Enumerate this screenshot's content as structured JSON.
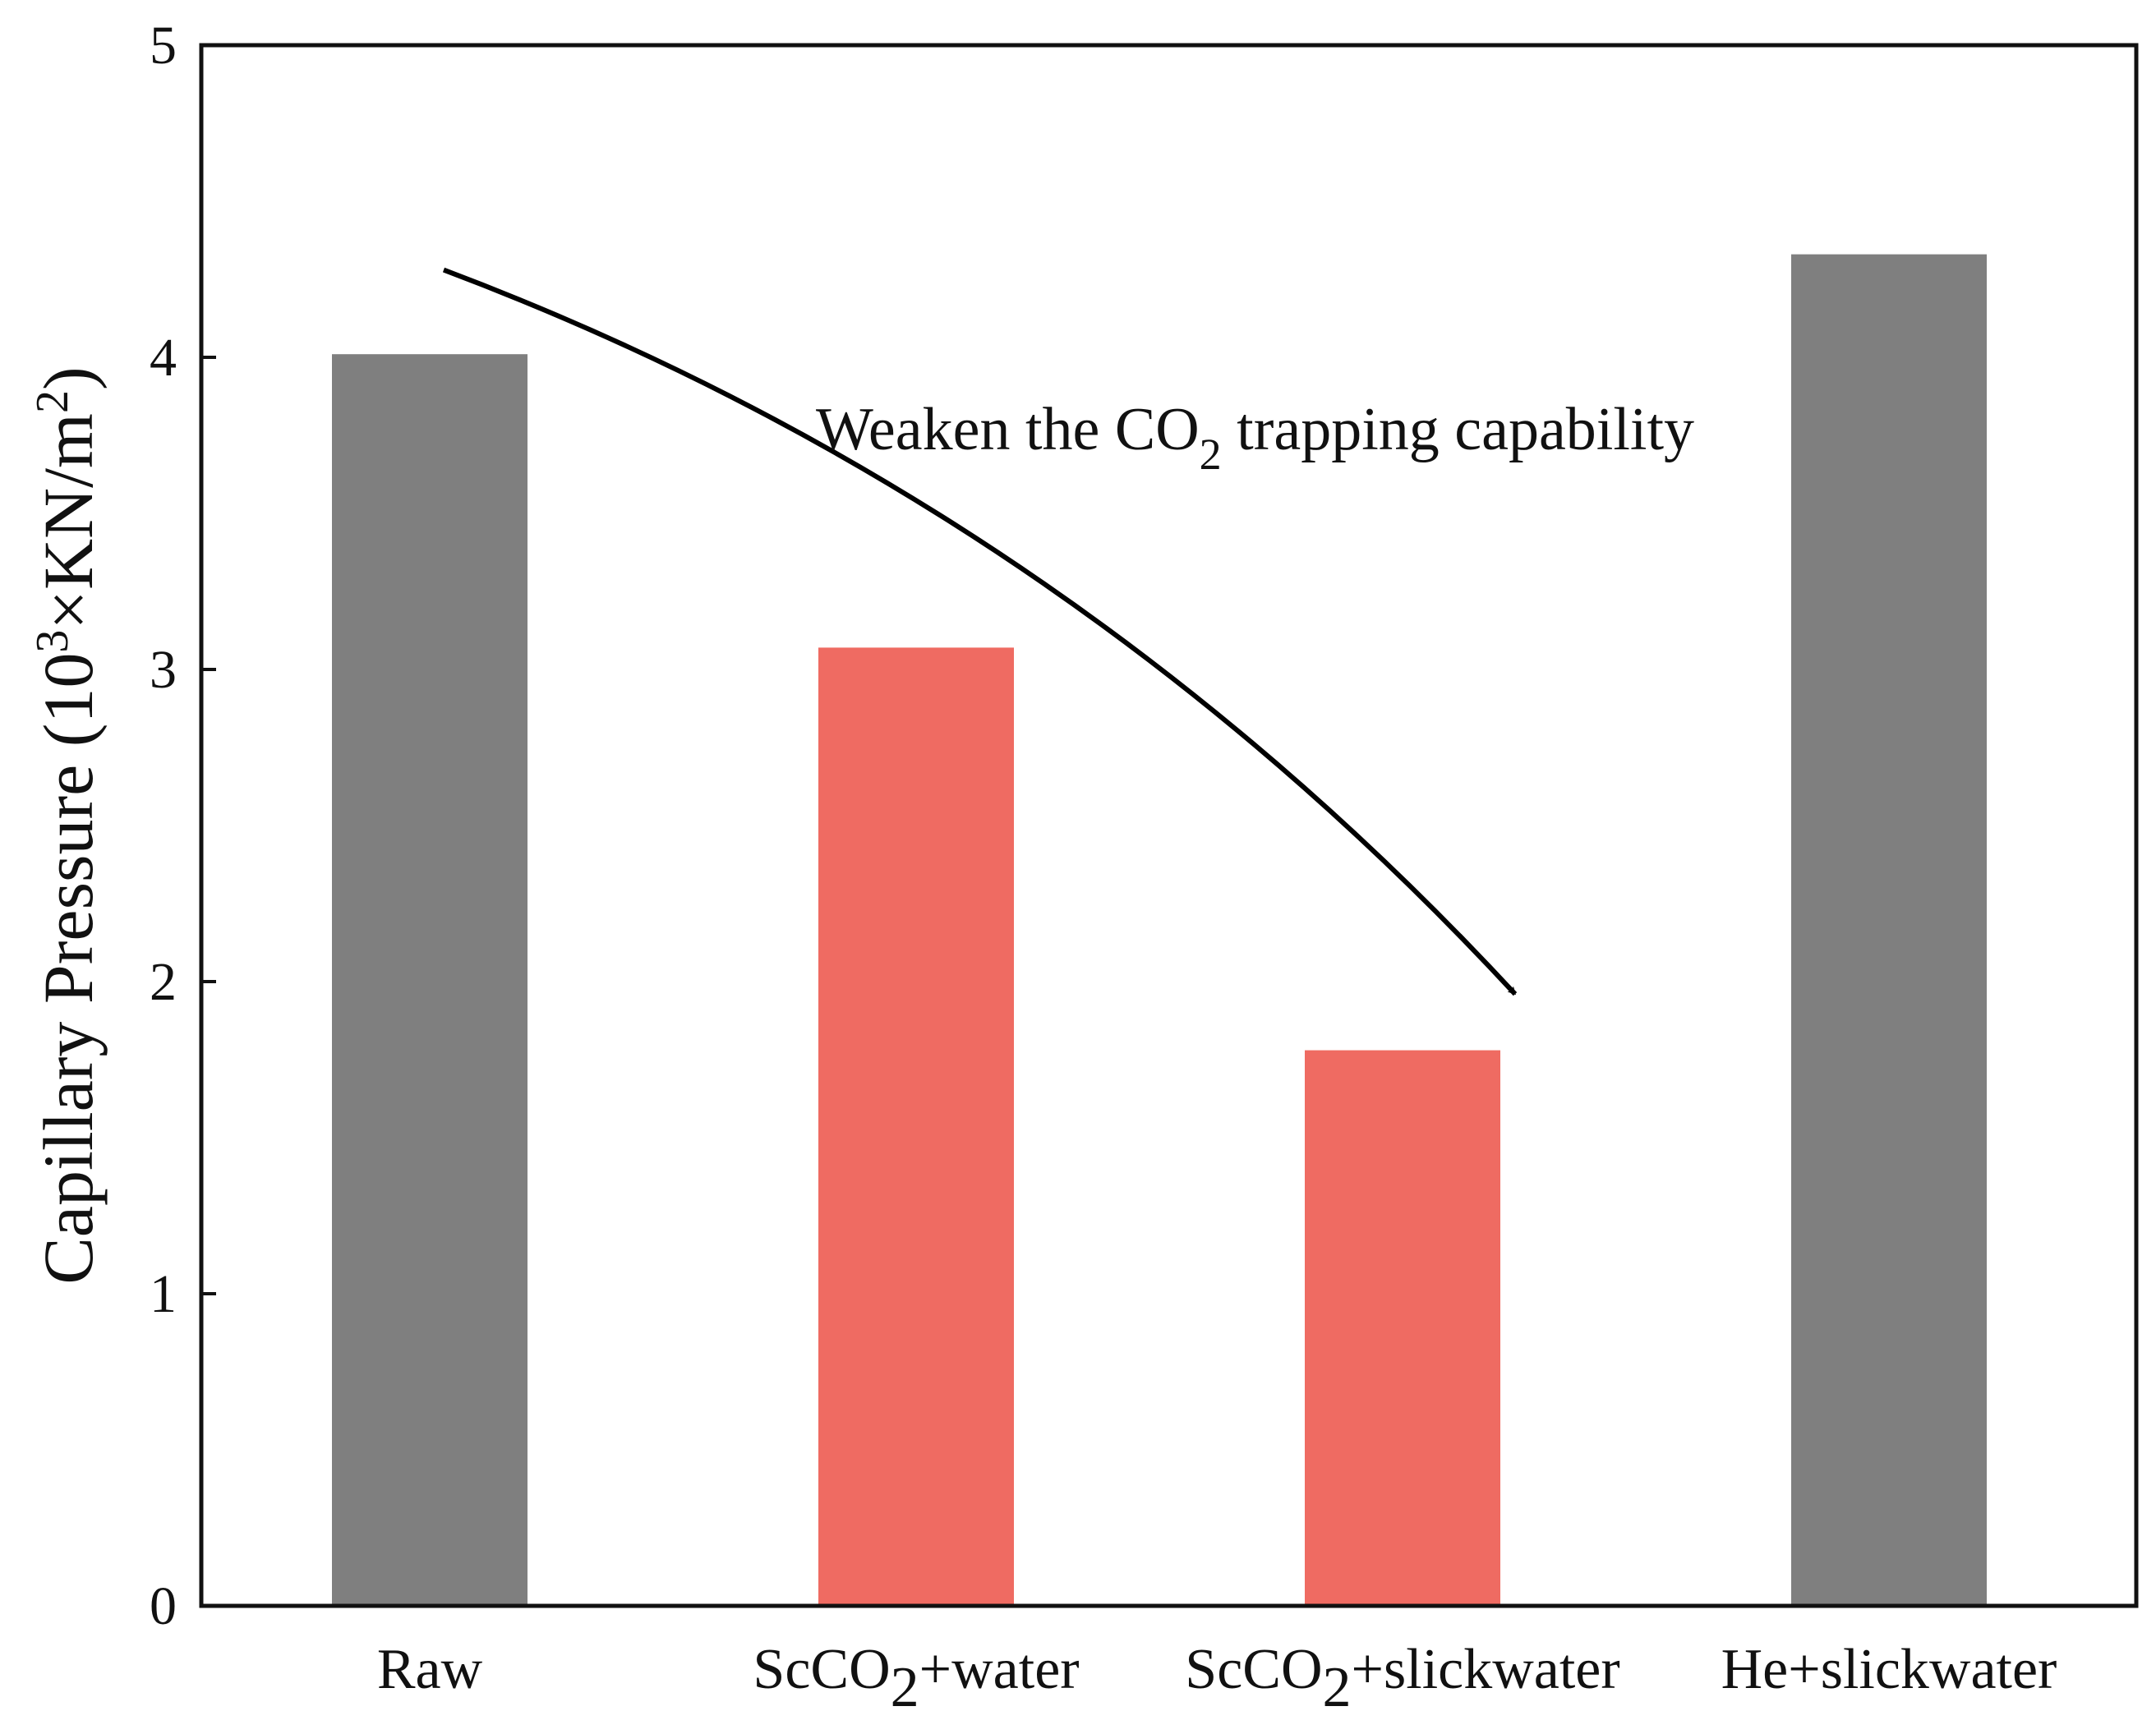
{
  "chart_data": {
    "type": "bar",
    "title": "",
    "xlabel": "",
    "ylabel": {
      "prefix": "Capillary Pressure (10",
      "exp": "3",
      "mid": "×KN/m",
      "exp2": "2",
      "suffix": ")"
    },
    "ylim": [
      0,
      5
    ],
    "yticks": [
      "0",
      "1",
      "2",
      "3",
      "4",
      "5"
    ],
    "categories": [
      {
        "main": "Raw",
        "sub": "",
        "rest": ""
      },
      {
        "main": "ScCO",
        "sub": "2",
        "rest": "+water"
      },
      {
        "main": "ScCO",
        "sub": "2",
        "rest": "+slickwater"
      },
      {
        "main": "He+slickwater",
        "sub": "",
        "rest": ""
      }
    ],
    "values": [
      4.01,
      3.07,
      1.78,
      4.33
    ],
    "bar_colors": [
      "#7f7f7f",
      "#ef6b62",
      "#ef6b62",
      "#7f7f7f"
    ],
    "grid": false,
    "annotation": {
      "text_before": "Weaken the CO",
      "sub": "2",
      "text_after": " trapping capability",
      "arrow": {
        "from": {
          "category_index": 0,
          "value": 4.28
        },
        "to": {
          "category_index": 2,
          "value": 1.96
        }
      }
    }
  }
}
